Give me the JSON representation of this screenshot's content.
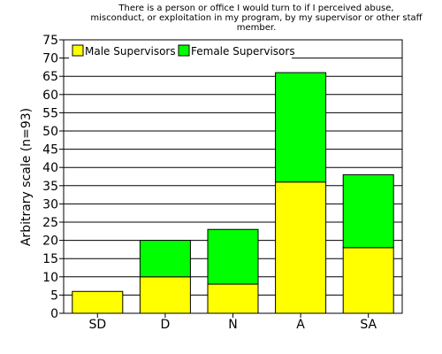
{
  "chart_data": {
    "type": "bar",
    "stacked": true,
    "title_lines": [
      "There is a person or office I would turn to if I perceived abuse,",
      "misconduct, or exploitation in my program, by my supervisor or other staff",
      "member."
    ],
    "ylabel": "Arbitrary scale (n=93)",
    "xlabel": "",
    "categories": [
      "SD",
      "D",
      "N",
      "A",
      "SA"
    ],
    "series": [
      {
        "name": "Male Supervisors",
        "values": [
          6,
          10,
          8,
          36,
          18
        ],
        "color": "#ffff00"
      },
      {
        "name": "Female Supervisors",
        "values": [
          0,
          10,
          15,
          30,
          20
        ],
        "color": "#00ff00"
      }
    ],
    "ylim": [
      0,
      75
    ],
    "ytick_step": 5,
    "yticks": [
      "0",
      "5",
      "10",
      "15",
      "20",
      "25",
      "30",
      "35",
      "40",
      "45",
      "50",
      "55",
      "60",
      "65",
      "70",
      "75"
    ],
    "grid": true,
    "legend_position": "top-left"
  }
}
